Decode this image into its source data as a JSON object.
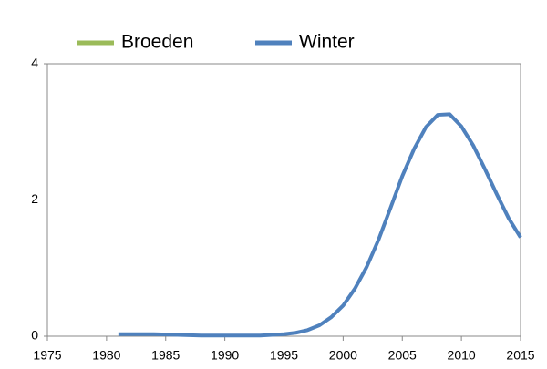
{
  "chart_data": {
    "type": "line",
    "x": [
      1981,
      1982,
      1983,
      1984,
      1985,
      1986,
      1987,
      1988,
      1989,
      1990,
      1991,
      1992,
      1993,
      1994,
      1995,
      1996,
      1997,
      1998,
      1999,
      2000,
      2001,
      2002,
      2003,
      2004,
      2005,
      2006,
      2007,
      2008,
      2009,
      2010,
      2011,
      2012,
      2013,
      2014,
      2015
    ],
    "series": [
      {
        "name": "Broeden",
        "color": "#9bbb59",
        "values": [
          null,
          null,
          null,
          null,
          null,
          null,
          null,
          null,
          null,
          null,
          null,
          null,
          null,
          null,
          null,
          null,
          null,
          null,
          null,
          null,
          null,
          null,
          null,
          null,
          null,
          null,
          null,
          null,
          null,
          null,
          null,
          null,
          null,
          null,
          null
        ]
      },
      {
        "name": "Winter",
        "color": "#4f81bd",
        "values": [
          0.03,
          0.03,
          0.03,
          0.03,
          0.025,
          0.02,
          0.015,
          0.01,
          0.01,
          0.01,
          0.01,
          0.01,
          0.01,
          0.02,
          0.03,
          0.05,
          0.09,
          0.16,
          0.28,
          0.45,
          0.7,
          1.02,
          1.42,
          1.88,
          2.35,
          2.75,
          3.07,
          3.25,
          3.26,
          3.08,
          2.8,
          2.45,
          2.08,
          1.73,
          1.45
        ]
      }
    ],
    "xlim": [
      1975,
      2015
    ],
    "xticks": [
      1975,
      1980,
      1985,
      1990,
      1995,
      2000,
      2005,
      2010,
      2015
    ],
    "ylim": [
      0,
      4
    ],
    "yticks": [
      0,
      2,
      4
    ]
  }
}
